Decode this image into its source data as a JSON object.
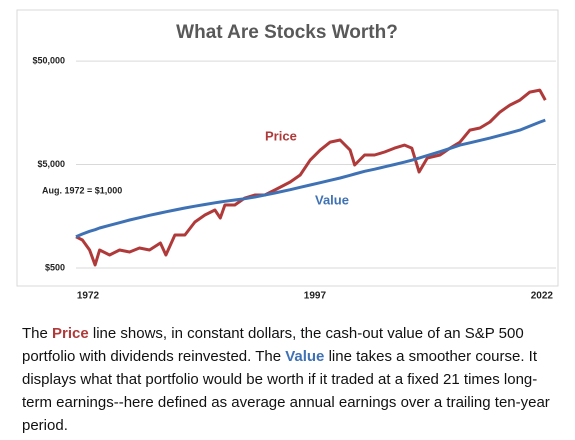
{
  "chart_data": {
    "type": "line",
    "title": "What Are Stocks Worth?",
    "annotations": [
      "Aug. 1972 = $1,000"
    ],
    "log_scale": true,
    "grid": true,
    "x": [
      1972.0,
      1972.7,
      1973.5,
      1974.1,
      1974.6,
      1975.7,
      1976.8,
      1977.9,
      1979.0,
      1980.1,
      1981.3,
      1981.9,
      1982.9,
      1984.0,
      1985.1,
      1986.2,
      1987.3,
      1987.9,
      1988.4,
      1989.5,
      1990.6,
      1991.7,
      1992.8,
      1993.9,
      1995.6,
      1996.7,
      1997.8,
      1998.9,
      2000.0,
      2001.1,
      2002.2,
      2002.7,
      2003.8,
      2004.9,
      2006.0,
      2007.1,
      2008.2,
      2009.0,
      2009.8,
      2010.7,
      2012.1,
      2013.2,
      2014.3,
      2015.4,
      2016.5,
      2017.6,
      2018.7,
      2019.8,
      2020.9,
      2022.0,
      2023.1,
      2023.7
    ],
    "series": [
      {
        "name": "Price",
        "color": "#b03a3a",
        "values": [
          1000,
          932,
          746,
          534,
          746,
          668,
          746,
          714,
          780,
          746,
          872,
          668,
          1042,
          1042,
          1391,
          1625,
          1816,
          1520,
          2031,
          2031,
          2375,
          2536,
          2536,
          2837,
          3389,
          3958,
          5525,
          6900,
          8240,
          8630,
          6900,
          4945,
          6180,
          6180,
          6604,
          7215,
          7710,
          7215,
          4234,
          5780,
          6180,
          7215,
          8240,
          10770,
          11270,
          12880,
          16080,
          18790,
          21000,
          25100,
          26240,
          21000
        ]
      },
      {
        "name": "Value",
        "color": "#3f72b5",
        "values": [
          1000,
          1066,
          1131,
          1172,
          1217,
          1293,
          1370,
          1455,
          1531,
          1615,
          1700,
          1746,
          1816,
          1900,
          1977,
          2054,
          2133,
          2172,
          2205,
          2269,
          2337,
          2427,
          2536,
          2651,
          2853,
          3012,
          3170,
          3336,
          3518,
          3704,
          3933,
          4047,
          4298,
          4505,
          4752,
          5000,
          5274,
          5502,
          5765,
          6109,
          6649,
          7170,
          7710,
          8121,
          8567,
          9016,
          9575,
          10144,
          10770,
          11775,
          12870,
          13460
        ]
      }
    ],
    "xlim": [
      1972,
      2024
    ],
    "xticks": [
      1972,
      1997,
      2022
    ],
    "ylim": [
      400,
      80000
    ],
    "yticks": [
      {
        "value": 500,
        "label": "$500"
      },
      {
        "value": 5000,
        "label": "$5,000"
      },
      {
        "value": 50000,
        "label": "$50,000"
      }
    ]
  },
  "caption": [
    "The ",
    "Price",
    " line shows, in constant dollars, the cash-out value of an S&P 500 portfolio with dividends reinvested. The ",
    "Value",
    " line takes a smoother course. It displays what that portfolio would be worth if it traded at a fixed 21 times long-term earnings--here defined as average annual earnings over a trailing ten-year period."
  ]
}
